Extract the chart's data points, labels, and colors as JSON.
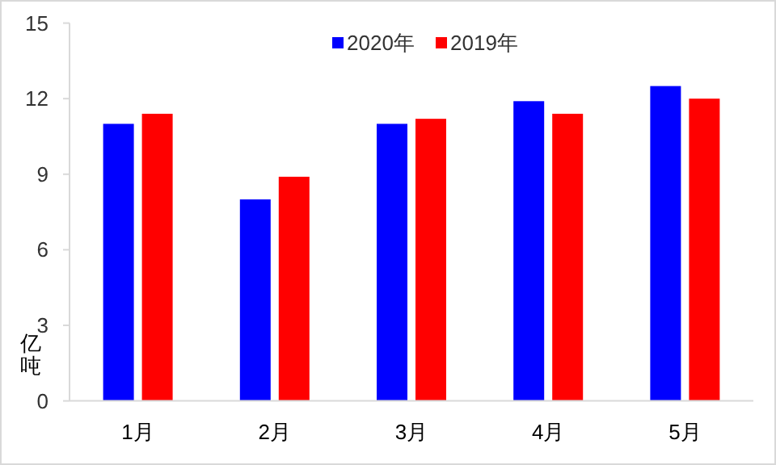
{
  "chart_data": {
    "type": "bar",
    "categories": [
      "1月",
      "2月",
      "3月",
      "4月",
      "5月"
    ],
    "series": [
      {
        "name": "2020年",
        "color": "#0000ff",
        "values": [
          11.0,
          8.0,
          11.0,
          11.9,
          12.5
        ]
      },
      {
        "name": "2019年",
        "color": "#ff0000",
        "values": [
          11.4,
          8.9,
          11.2,
          11.4,
          12.0
        ]
      }
    ],
    "ylabel": "亿吨",
    "ylim": [
      0,
      15
    ],
    "yticks": [
      0,
      3,
      6,
      9,
      12,
      15
    ],
    "grid": false,
    "legend": "top"
  }
}
